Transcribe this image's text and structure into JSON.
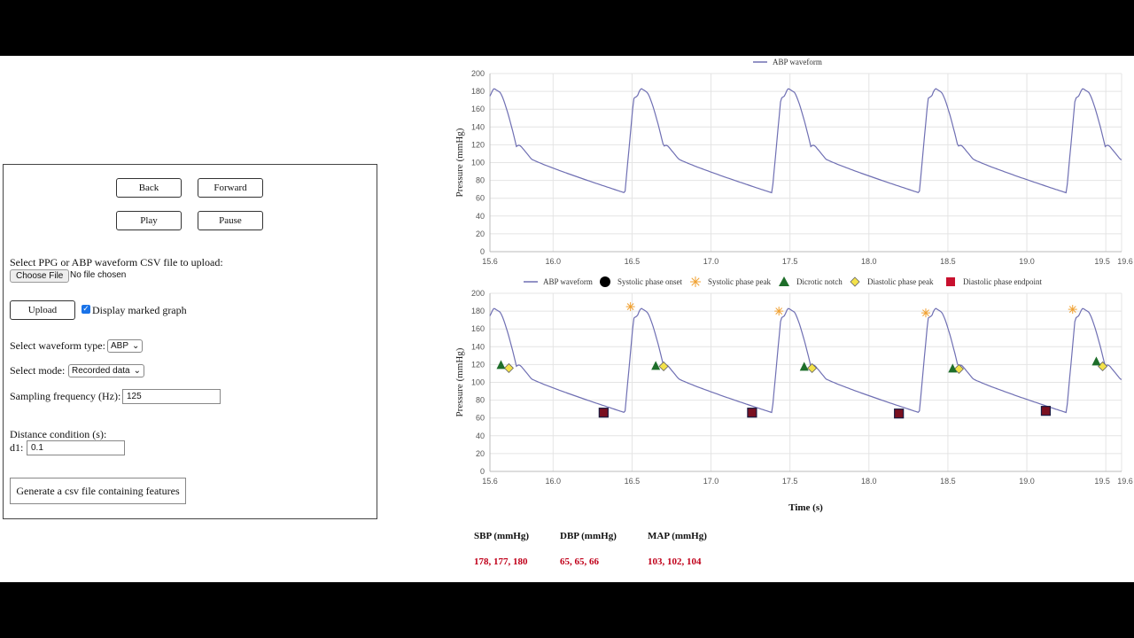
{
  "controls": {
    "back": "Back",
    "forward": "Forward",
    "play": "Play",
    "pause": "Pause",
    "upload_prompt": "Select PPG or ABP waveform CSV file to upload:",
    "choose_file": "Choose File",
    "no_file": "No file chosen",
    "upload": "Upload",
    "display_marked_label": "Display marked graph",
    "display_marked_checked": true,
    "waveform_type_label": "Select waveform type:",
    "waveform_type_value": "ABP",
    "mode_label": "Select mode:",
    "mode_value": "Recorded data",
    "sampling_label": "Sampling frequency (Hz):",
    "sampling_value": "125",
    "distance_label": "Distance condition (s):",
    "d1_label": "d1:",
    "d1_value": "0.1",
    "generate": "Generate a csv file containing features"
  },
  "chart_data": [
    {
      "type": "line",
      "legend": [
        "ABP waveform"
      ],
      "ylabel": "Pressure (mmHg)",
      "xlabel": "",
      "ylim": [
        0,
        200
      ],
      "xlim": [
        15.6,
        19.6
      ],
      "yticks": [
        "0",
        "20",
        "40",
        "60",
        "80",
        "100",
        "120",
        "140",
        "160",
        "180",
        "200"
      ],
      "xticks": [
        "15.6",
        "16.0",
        "16.5",
        "17.0",
        "17.5",
        "18.0",
        "18.5",
        "19.0",
        "19.5",
        "19.6"
      ],
      "series": [
        {
          "name": "ABP waveform",
          "color": "#6f6fb3"
        }
      ]
    },
    {
      "type": "line",
      "legend": [
        "ABP waveform",
        "Systolic phase onset",
        "Systolic phase peak",
        "Dicrotic notch",
        "Diastolic phase peak",
        "Diastolic phase endpoint"
      ],
      "ylabel": "Pressure (mmHg)",
      "xlabel": "Time (s)",
      "ylim": [
        0,
        200
      ],
      "xlim": [
        15.6,
        19.6
      ],
      "yticks": [
        "0",
        "20",
        "40",
        "60",
        "80",
        "100",
        "120",
        "140",
        "160",
        "180",
        "200"
      ],
      "xticks": [
        "15.6",
        "16.0",
        "16.5",
        "17.0",
        "17.5",
        "18.0",
        "18.5",
        "19.0",
        "19.5",
        "19.6"
      ],
      "markers": {
        "systolic_peak": [
          [
            16.49,
            185
          ],
          [
            17.43,
            180
          ],
          [
            18.36,
            178
          ],
          [
            19.29,
            182
          ]
        ],
        "dicrotic_notch": [
          [
            15.67,
            119
          ],
          [
            16.65,
            118
          ],
          [
            17.59,
            117
          ],
          [
            18.53,
            115
          ],
          [
            19.44,
            123
          ]
        ],
        "diastolic_peak": [
          [
            15.72,
            116
          ],
          [
            16.7,
            118
          ],
          [
            17.64,
            116
          ],
          [
            18.57,
            115
          ],
          [
            19.48,
            118
          ]
        ],
        "diastolic_endpoint": [
          [
            16.32,
            66
          ],
          [
            17.26,
            66
          ],
          [
            18.19,
            65
          ],
          [
            19.12,
            68
          ]
        ]
      }
    }
  ],
  "stats": {
    "sbp_label": "SBP (mmHg)",
    "sbp_value": "178, 177, 180",
    "dbp_label": "DBP (mmHg)",
    "dbp_value": "65, 65, 66",
    "map_label": "MAP (mmHg)",
    "map_value": "103, 102, 104"
  },
  "colors": {
    "waveform": "#6f6fb3",
    "onset": "#000000",
    "systolic_peak": "#f0a030",
    "dicrotic_notch": "#1e6e2a",
    "diastolic_peak": "#f4e24a",
    "diastolic_endpoint": "#c8102e",
    "stat_value": "#c0001a"
  }
}
